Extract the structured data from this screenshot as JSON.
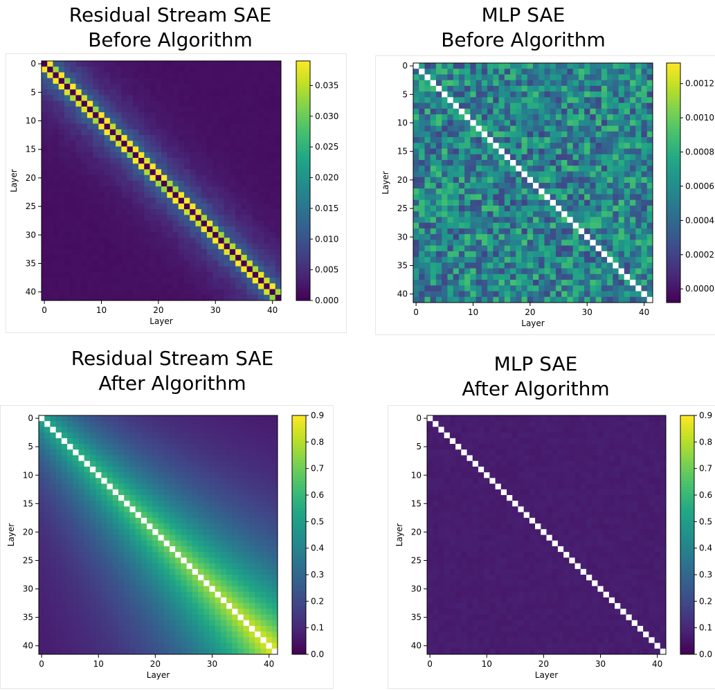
{
  "figure": {
    "panels": [
      {
        "title_line1": "Residual Stream SAE",
        "title_line2": "Before Algorithm"
      },
      {
        "title_line1": "MLP SAE",
        "title_line2": "Before Algorithm"
      },
      {
        "title_line1": "Residual Stream SAE",
        "title_line2": "After Algorithm"
      },
      {
        "title_line1": "MLP SAE",
        "title_line2": "After Algorithm"
      }
    ]
  },
  "chart_data": [
    {
      "type": "heatmap",
      "title": "Residual Stream SAE Before Algorithm",
      "xlabel": "Layer",
      "ylabel": "Layer",
      "n": 42,
      "x_ticks": [
        0,
        10,
        20,
        30,
        40
      ],
      "y_ticks": [
        0,
        5,
        10,
        15,
        20,
        25,
        30,
        35,
        40
      ],
      "colorbar": {
        "range": [
          0,
          0.039
        ],
        "ticks": [
          "0.000",
          "0.005",
          "0.010",
          "0.015",
          "0.020",
          "0.025",
          "0.030",
          "0.035"
        ],
        "tick_values": [
          0,
          0.005,
          0.01,
          0.015,
          0.02,
          0.025,
          0.03,
          0.035
        ]
      },
      "colormap": "viridis",
      "diagonal": "min",
      "pattern": {
        "kind": "resid_before",
        "near_diag_peak": 0.036,
        "decay_off_diag": 4.0,
        "background": 0.0015
      }
    },
    {
      "type": "heatmap",
      "title": "MLP SAE Before Algorithm",
      "xlabel": "Layer",
      "ylabel": "Layer",
      "n": 42,
      "x_ticks": [
        0,
        10,
        20,
        30,
        40
      ],
      "y_ticks": [
        0,
        5,
        10,
        15,
        20,
        25,
        30,
        35,
        40
      ],
      "colorbar": {
        "range": [
          -8e-05,
          0.00132
        ],
        "ticks": [
          "0.0000",
          "0.0002",
          "0.0004",
          "0.0006",
          "0.0008",
          "0.0010",
          "0.0012"
        ],
        "tick_values": [
          0,
          0.0002,
          0.0004,
          0.0006,
          0.0008,
          0.001,
          0.0012
        ]
      },
      "colormap": "viridis",
      "diagonal": "white",
      "pattern": {
        "kind": "mlp_before",
        "mean": 0.00055,
        "spread": 0.00035
      }
    },
    {
      "type": "heatmap",
      "title": "Residual Stream SAE After Algorithm",
      "xlabel": "Layer",
      "ylabel": "Layer",
      "n": 42,
      "x_ticks": [
        0,
        10,
        20,
        30,
        40
      ],
      "y_ticks": [
        0,
        5,
        10,
        15,
        20,
        25,
        30,
        35,
        40
      ],
      "colorbar": {
        "range": [
          0,
          0.9
        ],
        "ticks": [
          "0.0",
          "0.1",
          "0.2",
          "0.3",
          "0.4",
          "0.5",
          "0.6",
          "0.7",
          "0.8",
          "0.9"
        ],
        "tick_values": [
          0,
          0.1,
          0.2,
          0.3,
          0.4,
          0.5,
          0.6,
          0.7,
          0.8,
          0.9
        ]
      },
      "colormap": "viridis",
      "diagonal": "white",
      "pattern": {
        "kind": "resid_after",
        "near_diag_peak": 0.85,
        "decay_off_diag": 12.0
      }
    },
    {
      "type": "heatmap",
      "title": "MLP SAE After Algorithm",
      "xlabel": "Layer",
      "ylabel": "Layer",
      "n": 42,
      "x_ticks": [
        0,
        10,
        20,
        30,
        40
      ],
      "y_ticks": [
        0,
        5,
        10,
        15,
        20,
        25,
        30,
        35,
        40
      ],
      "colorbar": {
        "range": [
          0,
          0.9
        ],
        "ticks": [
          "0.0",
          "0.1",
          "0.2",
          "0.3",
          "0.4",
          "0.5",
          "0.6",
          "0.7",
          "0.8",
          "0.9"
        ],
        "tick_values": [
          0,
          0.1,
          0.2,
          0.3,
          0.4,
          0.5,
          0.6,
          0.7,
          0.8,
          0.9
        ]
      },
      "colormap": "viridis",
      "diagonal": "white",
      "pattern": {
        "kind": "mlp_after",
        "level": 0.06
      }
    }
  ]
}
